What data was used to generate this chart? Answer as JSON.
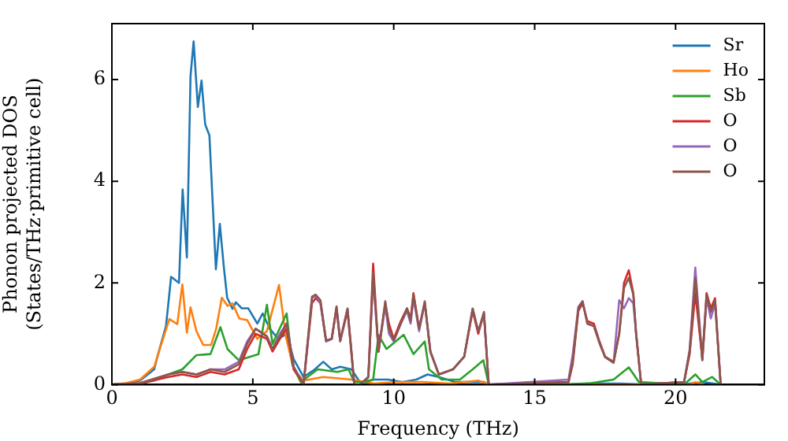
{
  "chart_data": {
    "type": "line",
    "xlabel": "Frequency (THz)",
    "ylabel": "Phonon projected DOS\n(States/THz·primitive cell)",
    "xlim": [
      0,
      23.15
    ],
    "ylim": [
      0,
      7.1
    ],
    "xticks": [
      0,
      5,
      10,
      15,
      20
    ],
    "yticks": [
      0,
      2,
      4,
      6
    ],
    "grid": false,
    "legend": "top right",
    "marker": "none",
    "line_style": "solid",
    "series": [
      {
        "name": "Sr",
        "color": "#1f77b4",
        "x": [
          0,
          0.5,
          1,
          1.5,
          1.64,
          1.92,
          2.1,
          2.38,
          2.51,
          2.66,
          2.79,
          2.9,
          3.05,
          3.18,
          3.31,
          3.46,
          3.69,
          3.83,
          3.97,
          4.09,
          4.28,
          4.4,
          4.61,
          4.84,
          5.16,
          5.35,
          5.6,
          5.9,
          6.2,
          6.45,
          6.8,
          7.2,
          7.5,
          7.8,
          8.1,
          8.5,
          8.8,
          9.3,
          9.8,
          10.3,
          10.8,
          11.2,
          11.6,
          12.2,
          12.8,
          13.2,
          13.4,
          16,
          17,
          18,
          19,
          20,
          20.5,
          21,
          21.6
        ],
        "values": [
          0,
          0.02,
          0.08,
          0.3,
          0.6,
          1.15,
          2.12,
          2.0,
          3.84,
          2.5,
          6.07,
          6.75,
          5.46,
          5.98,
          5.12,
          4.9,
          2.27,
          3.16,
          2.32,
          1.71,
          1.49,
          1.62,
          1.5,
          1.5,
          1.2,
          1.4,
          1.1,
          0.9,
          1.0,
          0.5,
          0.15,
          0.3,
          0.45,
          0.3,
          0.35,
          0.3,
          0.05,
          0.1,
          0.1,
          0.05,
          0.1,
          0.2,
          0.15,
          0.05,
          0.05,
          0.05,
          0,
          0,
          0.02,
          0.02,
          0,
          0,
          0.02,
          0.05,
          0
        ]
      },
      {
        "name": "Ho",
        "color": "#ff7f0e",
        "x": [
          0,
          0.5,
          1,
          1.5,
          1.7,
          2.04,
          2.32,
          2.5,
          2.66,
          2.79,
          3.0,
          3.24,
          3.52,
          3.7,
          3.9,
          4.1,
          4.28,
          4.52,
          4.8,
          5.16,
          5.5,
          5.93,
          6.17,
          6.45,
          6.8,
          7.5,
          8.5,
          9.3,
          10,
          11,
          12,
          13,
          13.4,
          16,
          20.5,
          20.7,
          21
        ],
        "values": [
          0,
          0.03,
          0.1,
          0.35,
          0.7,
          1.29,
          1.19,
          1.97,
          1.02,
          1.52,
          1.05,
          0.78,
          0.78,
          1.1,
          1.71,
          1.55,
          1.6,
          1.3,
          1.27,
          0.9,
          1.05,
          1.96,
          0.95,
          0.3,
          0.08,
          0.15,
          0.1,
          0.02,
          0.05,
          0.05,
          0.02,
          0.08,
          0,
          0,
          0,
          0.05,
          0
        ]
      },
      {
        "name": "Sb",
        "color": "#2ca02c",
        "x": [
          0,
          1,
          1.5,
          2,
          2.5,
          3.0,
          3.5,
          3.85,
          4.1,
          4.5,
          5.2,
          5.5,
          5.7,
          6.2,
          6.4,
          6.7,
          7.3,
          8.0,
          8.4,
          8.6,
          9.0,
          9.27,
          9.46,
          9.74,
          10.35,
          10.7,
          11.1,
          11.25,
          11.7,
          12.35,
          12.8,
          13.18,
          13.37,
          16,
          17,
          17.8,
          18.34,
          18.7,
          20.3,
          20.7,
          20.95,
          21.3,
          21.6
        ],
        "values": [
          0,
          0.02,
          0.08,
          0.2,
          0.3,
          0.58,
          0.6,
          1.13,
          0.7,
          0.48,
          0.6,
          1.57,
          0.8,
          1.4,
          0.4,
          0.05,
          0.3,
          0.25,
          0.3,
          0.05,
          0.05,
          0.1,
          0.98,
          0.7,
          0.98,
          0.6,
          0.85,
          0.3,
          0.1,
          0.1,
          0.3,
          0.48,
          0,
          0,
          0.03,
          0.1,
          0.34,
          0.05,
          0,
          0.2,
          0.05,
          0.15,
          0
        ]
      },
      {
        "name": "O",
        "color": "#d62728",
        "x": [
          0,
          1,
          2,
          2.5,
          3,
          3.5,
          4,
          4.5,
          4.8,
          5.1,
          5.5,
          5.7,
          5.96,
          6.2,
          6.45,
          6.8,
          7.1,
          7.23,
          7.4,
          7.6,
          7.8,
          7.97,
          8.1,
          8.36,
          8.5,
          8.6,
          8.8,
          9.1,
          9.27,
          9.46,
          9.7,
          9.83,
          10.0,
          10.25,
          10.47,
          10.6,
          10.7,
          10.9,
          11.1,
          11.3,
          11.6,
          12.1,
          12.5,
          12.8,
          13.0,
          13.2,
          13.37,
          16.2,
          16.35,
          16.55,
          16.7,
          16.87,
          17.1,
          17.3,
          17.5,
          17.8,
          18.0,
          18.17,
          18.34,
          18.5,
          18.6,
          18.78,
          20.3,
          20.5,
          20.7,
          20.95,
          21.1,
          21.25,
          21.4,
          21.6
        ],
        "values": [
          0,
          0.02,
          0.15,
          0.2,
          0.15,
          0.25,
          0.2,
          0.3,
          0.7,
          1.0,
          0.9,
          0.65,
          0.9,
          1.1,
          0.3,
          0,
          1.6,
          1.7,
          1.6,
          0.85,
          0.9,
          1.5,
          0.85,
          1.45,
          0.6,
          0,
          0,
          0.15,
          2.38,
          0.65,
          1.6,
          1.2,
          0.9,
          1.25,
          1.5,
          1.3,
          1.8,
          1.1,
          1.6,
          0.65,
          0.2,
          0.3,
          0.55,
          1.45,
          1.0,
          1.4,
          0,
          0.05,
          0.4,
          1.45,
          1.6,
          1.25,
          1.2,
          0.85,
          0.55,
          0.45,
          1.0,
          2.0,
          2.25,
          1.8,
          1.0,
          0,
          0.05,
          0.6,
          1.8,
          0.5,
          1.8,
          1.5,
          1.7,
          0
        ]
      },
      {
        "name": "O",
        "color": "#9467bd",
        "x": [
          0,
          1,
          2,
          2.5,
          3,
          3.5,
          4,
          4.5,
          4.8,
          5.1,
          5.5,
          5.7,
          5.96,
          6.2,
          6.45,
          6.8,
          7.1,
          7.23,
          7.4,
          7.6,
          7.8,
          7.97,
          8.1,
          8.36,
          8.5,
          8.6,
          8.8,
          9.1,
          9.27,
          9.46,
          9.7,
          9.83,
          10.0,
          10.25,
          10.47,
          10.6,
          10.7,
          10.9,
          11.1,
          11.3,
          11.6,
          12.1,
          12.5,
          12.8,
          13.0,
          13.2,
          13.37,
          16.2,
          16.35,
          16.55,
          16.7,
          16.87,
          17.1,
          17.3,
          17.5,
          17.8,
          18.0,
          18.17,
          18.34,
          18.5,
          18.6,
          18.78,
          20.3,
          20.5,
          20.7,
          20.95,
          21.1,
          21.25,
          21.4,
          21.6
        ],
        "values": [
          0,
          0.03,
          0.2,
          0.25,
          0.2,
          0.3,
          0.3,
          0.45,
          0.85,
          1.1,
          0.95,
          0.7,
          1.0,
          1.2,
          0.35,
          0,
          1.7,
          1.75,
          1.6,
          0.85,
          0.9,
          1.5,
          0.85,
          1.5,
          0.65,
          0,
          0,
          0.15,
          2.1,
          0.65,
          1.55,
          1.0,
          0.85,
          1.2,
          1.45,
          1.2,
          1.7,
          1.05,
          1.6,
          0.65,
          0.2,
          0.3,
          0.55,
          1.5,
          1.05,
          1.4,
          0,
          0.1,
          0.59,
          1.53,
          1.64,
          1.2,
          1.15,
          0.82,
          0.54,
          0.43,
          1.66,
          1.5,
          1.7,
          1.6,
          1.0,
          0,
          0.05,
          0.7,
          2.3,
          0.48,
          1.7,
          1.3,
          1.6,
          0
        ]
      },
      {
        "name": "O",
        "color": "#8c564b",
        "x": [
          0,
          1,
          2,
          2.5,
          3,
          3.5,
          4,
          4.5,
          4.8,
          5.1,
          5.5,
          5.7,
          5.96,
          6.2,
          6.45,
          6.8,
          7.1,
          7.23,
          7.4,
          7.6,
          7.8,
          7.97,
          8.1,
          8.36,
          8.5,
          8.6,
          8.8,
          9.1,
          9.27,
          9.46,
          9.7,
          9.83,
          10.0,
          10.25,
          10.47,
          10.6,
          10.7,
          10.9,
          11.1,
          11.3,
          11.6,
          12.1,
          12.5,
          12.8,
          13.0,
          13.2,
          13.37,
          16.2,
          16.35,
          16.55,
          16.7,
          16.87,
          17.1,
          17.3,
          17.5,
          17.8,
          18.0,
          18.17,
          18.34,
          18.5,
          18.6,
          18.78,
          20.3,
          20.5,
          20.7,
          20.95,
          21.1,
          21.25,
          21.4,
          21.6
        ],
        "values": [
          0,
          0.03,
          0.2,
          0.25,
          0.2,
          0.3,
          0.25,
          0.4,
          0.8,
          1.1,
          0.95,
          0.7,
          0.95,
          1.2,
          0.35,
          0,
          1.73,
          1.77,
          1.66,
          0.87,
          0.9,
          1.54,
          0.87,
          1.49,
          0.65,
          0,
          0,
          0.15,
          2.2,
          0.65,
          1.64,
          1.1,
          0.87,
          1.2,
          1.5,
          1.26,
          1.77,
          1.1,
          1.64,
          0.65,
          0.2,
          0.3,
          0.55,
          1.49,
          1.04,
          1.43,
          0,
          0.05,
          0.45,
          1.5,
          1.64,
          1.2,
          1.15,
          0.82,
          0.54,
          0.43,
          1.0,
          1.9,
          2.1,
          1.77,
          1.0,
          0,
          0.05,
          0.65,
          2.1,
          0.48,
          1.77,
          1.43,
          1.66,
          0
        ]
      }
    ]
  }
}
